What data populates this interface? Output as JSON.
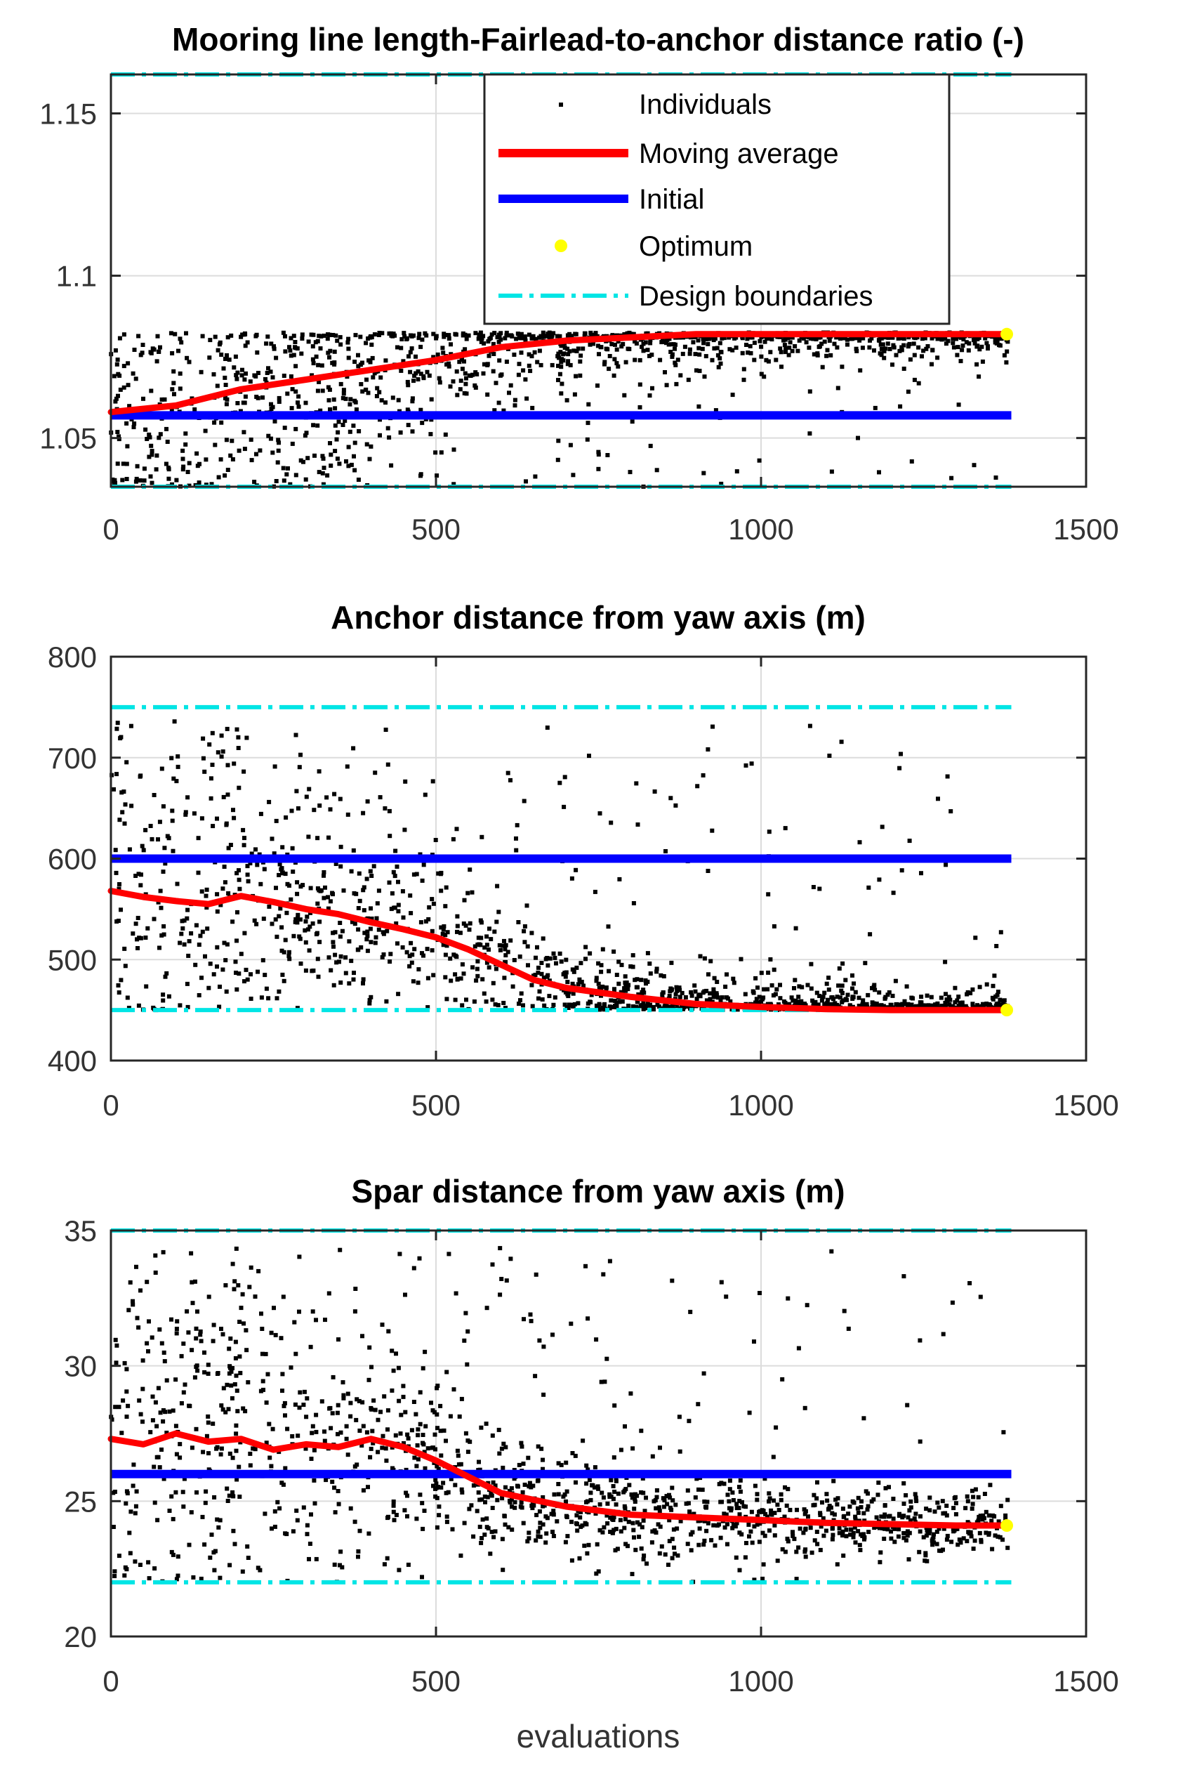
{
  "chart_data": [
    {
      "type": "scatter",
      "title": "Mooring line length-Fairlead-to-anchor distance ratio (-)",
      "xlabel": "",
      "ylabel": "",
      "xlim": [
        0,
        1500
      ],
      "ylim": [
        1.035,
        1.162
      ],
      "xticks": [
        0,
        500,
        1000,
        1500
      ],
      "yticks": [
        1.05,
        1.1,
        1.15
      ],
      "grid": true,
      "legend_position": "top-center",
      "legend": [
        "Individuals",
        "Moving average",
        "Initial",
        "Optimum",
        "Design boundaries"
      ],
      "series": [
        {
          "name": "Individuals",
          "kind": "scatter",
          "count": 1380,
          "x_range": [
            0,
            1380
          ],
          "description": "black dots spread 1.035-1.08 early, converging to ~1.082 after ~700 evaluations"
        },
        {
          "name": "Moving average",
          "kind": "line",
          "x": [
            0,
            100,
            200,
            300,
            400,
            500,
            600,
            700,
            800,
            900,
            1000,
            1100,
            1200,
            1300,
            1380
          ],
          "y": [
            1.058,
            1.06,
            1.065,
            1.068,
            1.071,
            1.074,
            1.078,
            1.08,
            1.081,
            1.082,
            1.082,
            1.082,
            1.082,
            1.082,
            1.082
          ]
        },
        {
          "name": "Initial",
          "kind": "hline",
          "y": 1.057,
          "x_range": [
            0,
            1385
          ]
        },
        {
          "name": "Optimum",
          "kind": "point",
          "x": 1378,
          "y": 1.082
        },
        {
          "name": "Design boundaries",
          "kind": "hline-dashdot",
          "y_values": [
            1.035,
            1.162
          ],
          "x_range": [
            0,
            1385
          ]
        }
      ]
    },
    {
      "type": "scatter",
      "title": "Anchor distance from yaw axis (m)",
      "xlabel": "",
      "ylabel": "",
      "xlim": [
        0,
        1500
      ],
      "ylim": [
        400,
        800
      ],
      "xticks": [
        0,
        500,
        1000,
        1500
      ],
      "yticks": [
        400,
        500,
        600,
        700,
        800
      ],
      "grid": true,
      "series": [
        {
          "name": "Individuals",
          "kind": "scatter",
          "count": 1380,
          "x_range": [
            0,
            1380
          ],
          "description": "black dots spread 450-750 early, converging to ~450 after ~900 evaluations"
        },
        {
          "name": "Moving average",
          "kind": "line",
          "x": [
            0,
            50,
            100,
            150,
            200,
            250,
            300,
            350,
            400,
            450,
            500,
            550,
            600,
            650,
            700,
            800,
            900,
            1000,
            1100,
            1200,
            1300,
            1380
          ],
          "y": [
            568,
            562,
            558,
            555,
            563,
            557,
            550,
            545,
            537,
            530,
            522,
            510,
            495,
            480,
            472,
            463,
            456,
            453,
            451,
            450,
            450,
            450
          ]
        },
        {
          "name": "Initial",
          "kind": "hline",
          "y": 600,
          "x_range": [
            0,
            1385
          ]
        },
        {
          "name": "Optimum",
          "kind": "point",
          "x": 1378,
          "y": 450
        },
        {
          "name": "Design boundaries",
          "kind": "hline-dashdot",
          "y_values": [
            450,
            750
          ],
          "x_range": [
            0,
            1385
          ]
        }
      ]
    },
    {
      "type": "scatter",
      "title": "Spar distance from yaw axis (m)",
      "xlabel": "evaluations",
      "ylabel": "",
      "xlim": [
        0,
        1500
      ],
      "ylim": [
        20,
        35
      ],
      "xticks": [
        0,
        500,
        1000,
        1500
      ],
      "yticks": [
        20,
        25,
        30,
        35
      ],
      "grid": true,
      "series": [
        {
          "name": "Individuals",
          "kind": "scatter",
          "count": 1380,
          "x_range": [
            0,
            1380
          ],
          "description": "black dots spread 22-35 early, converging to ~24.1 after ~1000 evaluations"
        },
        {
          "name": "Moving average",
          "kind": "line",
          "x": [
            0,
            50,
            100,
            150,
            200,
            250,
            300,
            350,
            400,
            450,
            500,
            550,
            600,
            700,
            800,
            900,
            1000,
            1100,
            1200,
            1300,
            1380
          ],
          "y": [
            27.3,
            27.1,
            27.5,
            27.2,
            27.3,
            26.9,
            27.1,
            27.0,
            27.3,
            27.0,
            26.5,
            25.9,
            25.3,
            24.8,
            24.5,
            24.4,
            24.3,
            24.2,
            24.15,
            24.1,
            24.1
          ]
        },
        {
          "name": "Initial",
          "kind": "hline",
          "y": 26.0,
          "x_range": [
            0,
            1385
          ]
        },
        {
          "name": "Optimum",
          "kind": "point",
          "x": 1378,
          "y": 24.1
        },
        {
          "name": "Design boundaries",
          "kind": "hline-dashdot",
          "y_values": [
            22.0,
            35.0
          ],
          "x_range": [
            0,
            1385
          ]
        }
      ]
    }
  ],
  "colors": {
    "individuals": "#000000",
    "moving_average": "#ff0000",
    "initial": "#0000ff",
    "optimum": "#ffff00",
    "design_boundaries": "#00e5e5",
    "grid": "#dcdcdc",
    "axes": "#262626"
  }
}
